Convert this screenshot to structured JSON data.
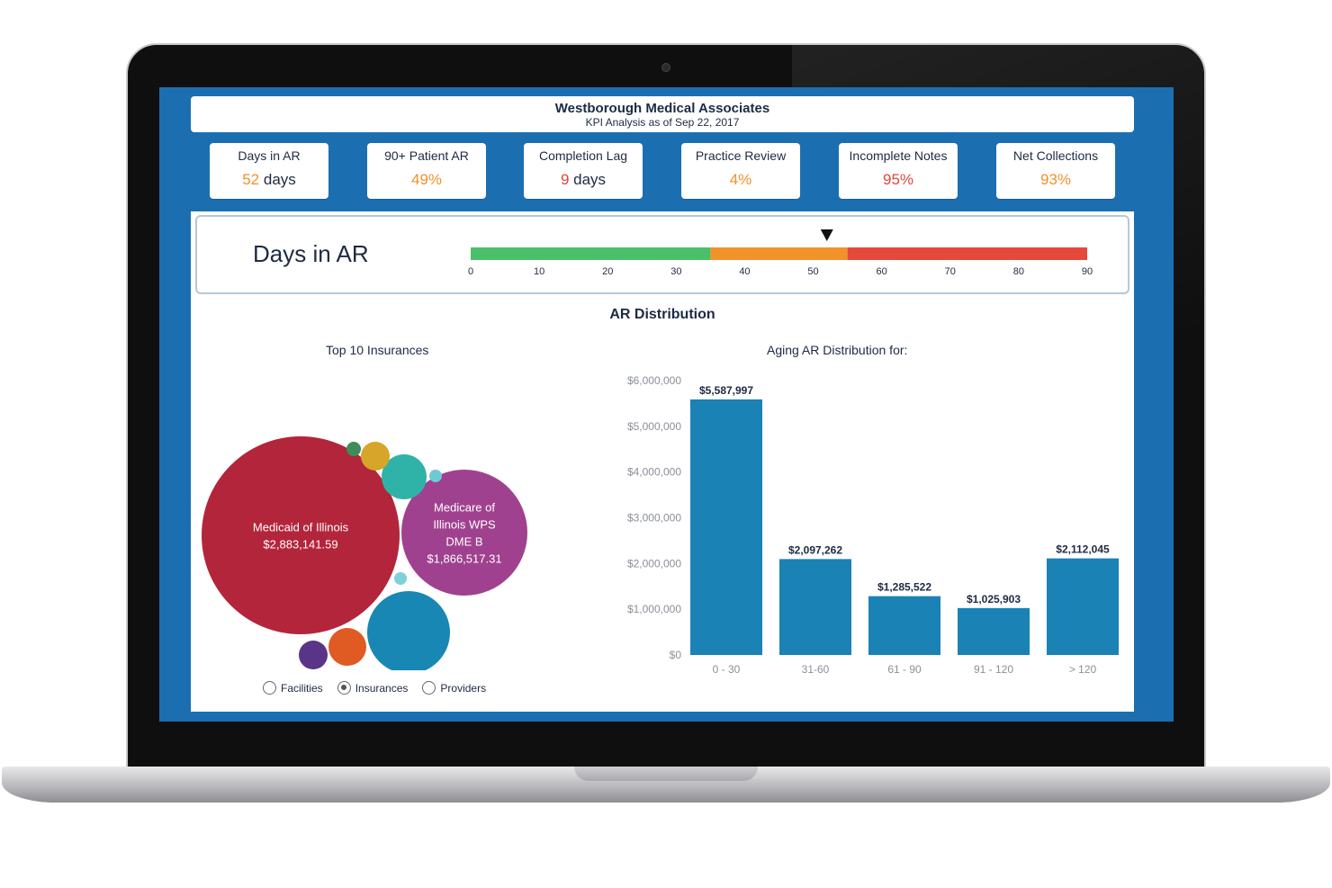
{
  "header": {
    "title": "Westborough Medical Associates",
    "subtitle": "KPI Analysis as of Sep 22, 2017"
  },
  "kpis": [
    {
      "label": "Days in AR",
      "value": "52",
      "unit": " days",
      "color": "#f0912b"
    },
    {
      "label": "90+ Patient AR",
      "value": "49%",
      "unit": "",
      "color": "#f0912b"
    },
    {
      "label": "Completion Lag",
      "value": "9",
      "unit": " days",
      "color": "#e0453a"
    },
    {
      "label": "Practice Review",
      "value": "4%",
      "unit": "",
      "color": "#f0912b"
    },
    {
      "label": "Incomplete Notes",
      "value": "95%",
      "unit": "",
      "color": "#e0453a"
    },
    {
      "label": "Net Collections",
      "value": "93%",
      "unit": "",
      "color": "#f0912b"
    }
  ],
  "gauge": {
    "title": "Days in AR",
    "min": 0,
    "max": 90,
    "marker_value": 52,
    "ticks": [
      "0",
      "10",
      "20",
      "30",
      "40",
      "50",
      "60",
      "70",
      "80",
      "90"
    ],
    "segments": [
      {
        "from": 0,
        "to": 35,
        "color": "#4cbf6a"
      },
      {
        "from": 35,
        "to": 55,
        "color": "#f2922b"
      },
      {
        "from": 55,
        "to": 90,
        "color": "#e5493a"
      }
    ]
  },
  "section_title": "AR Distribution",
  "bubbles": {
    "title": "Top 10 Insurances",
    "items": [
      {
        "label_lines": [
          "Medicaid of Illinois",
          "$2,883,141.59"
        ],
        "value": 2883141.59,
        "color": "#b3253b"
      },
      {
        "label_lines": [
          "Medicare of",
          "Illinois WPS",
          "DME B",
          "$1,866,517.31"
        ],
        "value": 1866517.31,
        "color": "#a0418f"
      },
      {
        "label_lines": [],
        "color": "#1987b4"
      },
      {
        "label_lines": [],
        "color": "#2fb3a8"
      },
      {
        "label_lines": [],
        "color": "#e05a24"
      },
      {
        "label_lines": [],
        "color": "#d6a52a"
      },
      {
        "label_lines": [],
        "color": "#5a3486"
      },
      {
        "label_lines": [],
        "color": "#3f8c5a"
      },
      {
        "label_lines": [],
        "color": "#6fc9d4"
      },
      {
        "label_lines": [],
        "color": "#7fd0da"
      }
    ],
    "filters": [
      {
        "label": "Facilities",
        "checked": false
      },
      {
        "label": "Insurances",
        "checked": true
      },
      {
        "label": "Providers",
        "checked": false
      }
    ]
  },
  "chart_data": {
    "type": "bar",
    "title": "Aging AR Distribution for:",
    "categories": [
      "0 - 30",
      "31-60",
      "61 - 90",
      "91 - 120",
      "> 120"
    ],
    "values": [
      5587997,
      2097262,
      1285522,
      1025903,
      2112045
    ],
    "data_labels": [
      "$5,587,997",
      "$2,097,262",
      "$1,285,522",
      "$1,025,903",
      "$2,112,045"
    ],
    "ylim": [
      0,
      6000000
    ],
    "y_ticks": [
      0,
      1000000,
      2000000,
      3000000,
      4000000,
      5000000,
      6000000
    ],
    "y_tick_labels": [
      "$0",
      "$1,000,000",
      "$2,000,000",
      "$3,000,000",
      "$4,000,000",
      "$5,000,000",
      "$6,000,000"
    ],
    "bar_color": "#1a82b4",
    "grid": false
  }
}
